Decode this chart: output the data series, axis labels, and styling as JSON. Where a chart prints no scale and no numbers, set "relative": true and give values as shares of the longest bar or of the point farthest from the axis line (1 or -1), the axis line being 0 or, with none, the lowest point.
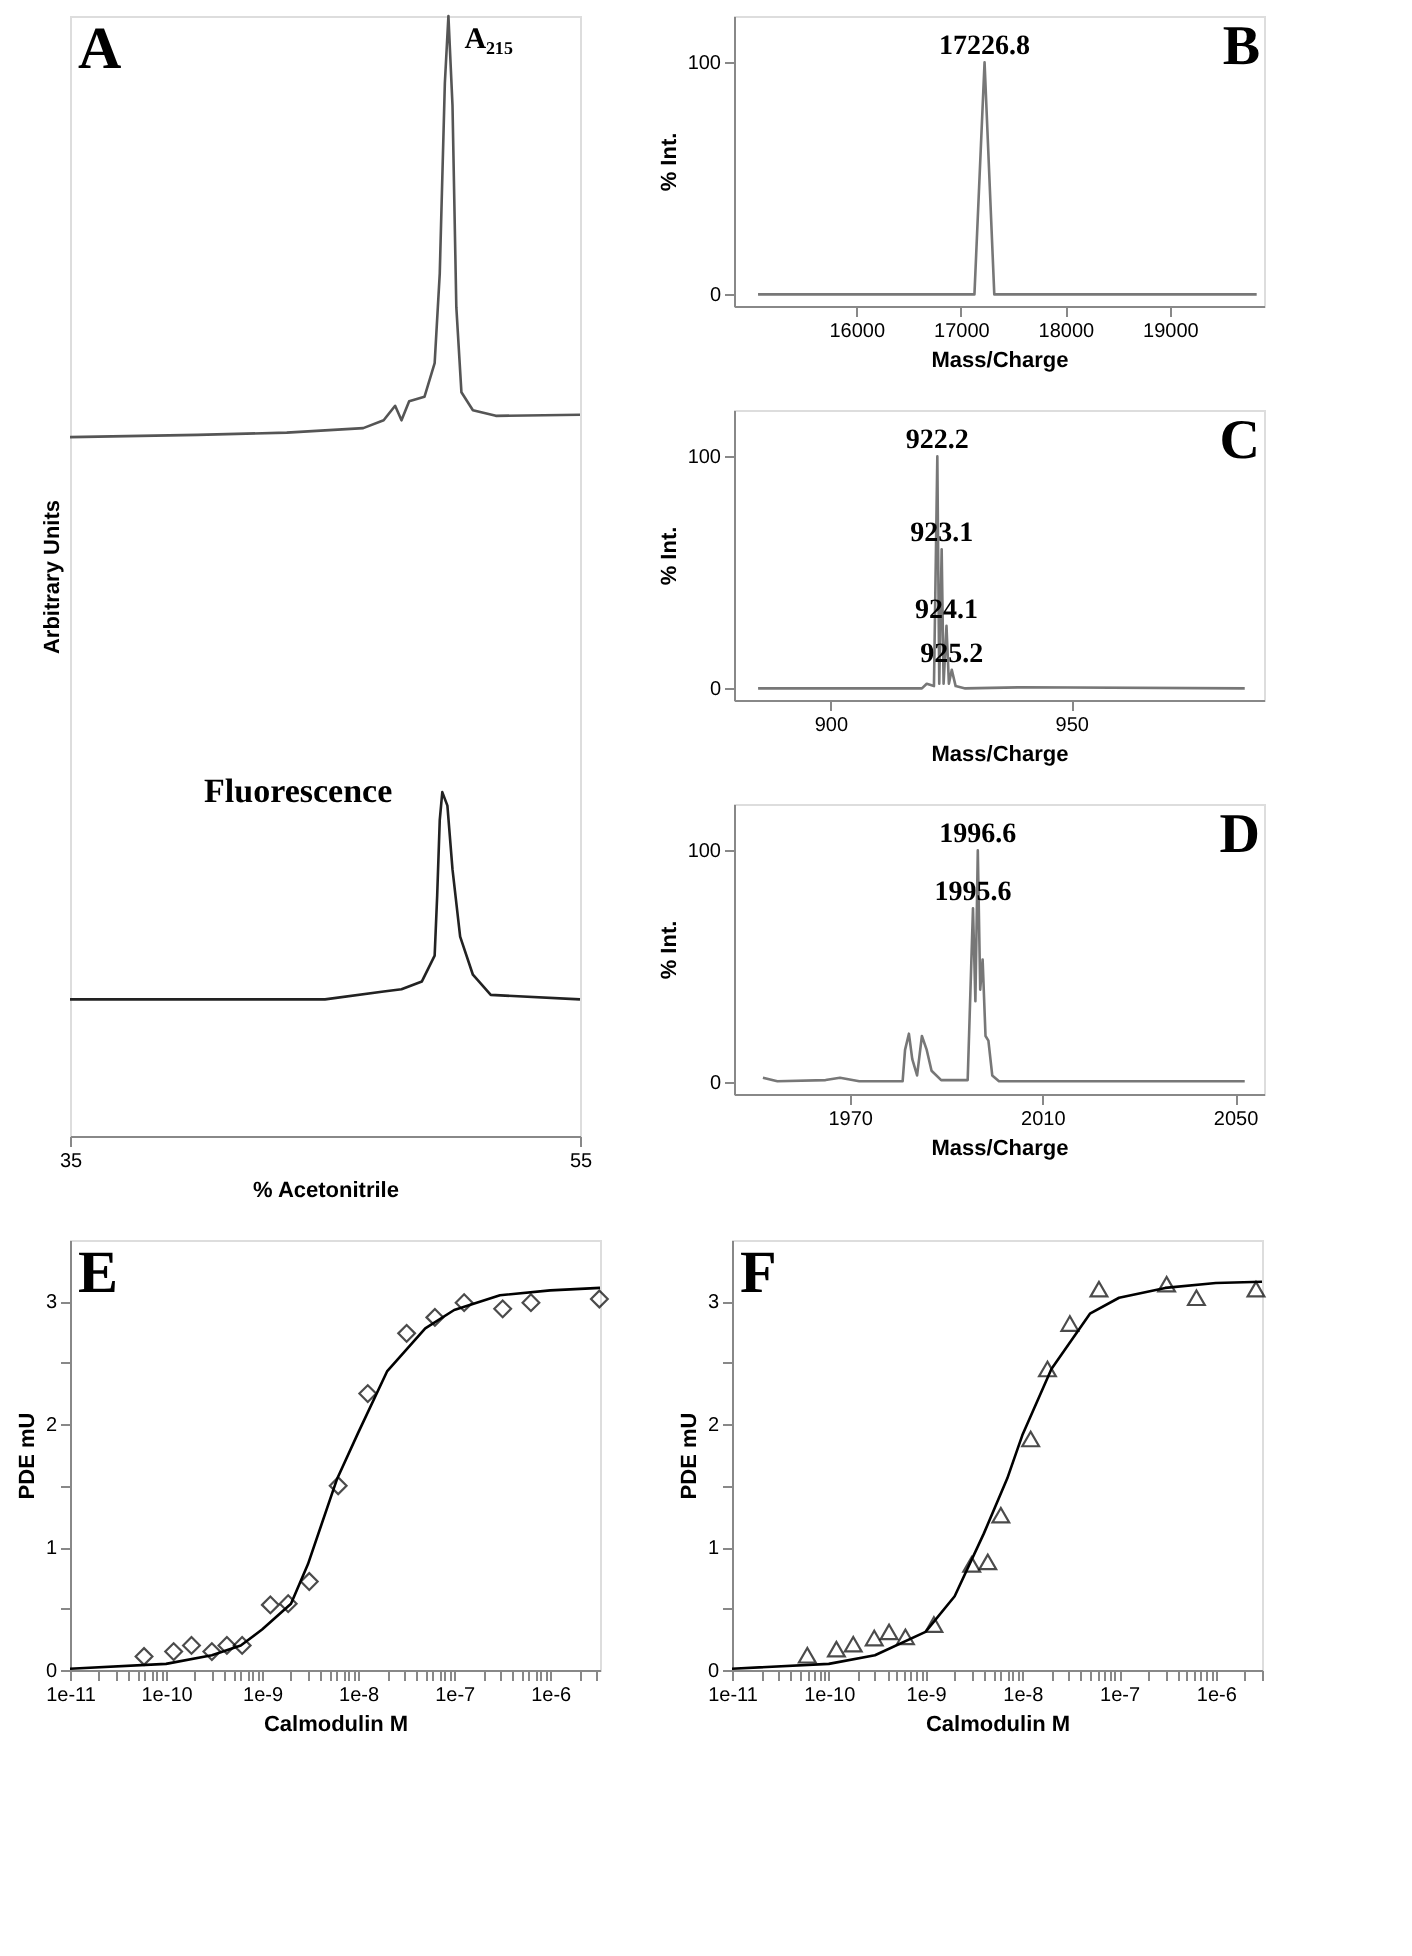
{
  "chart_data": [
    {
      "type": "line",
      "title": "A",
      "relative": true,
      "xlabel": "% Acetonitrile",
      "ylabel": "Arbitrary Units",
      "xlim": [
        35,
        55
      ],
      "xticks": [
        35,
        55
      ],
      "tick_labels": "x",
      "series": [
        {
          "name": "A₂₁₅",
          "color": "#555555",
          "x": [
            35,
            40,
            43.5,
            46.5,
            47.3,
            47.75,
            48.0,
            48.3,
            48.9,
            49.3,
            49.5,
            49.7,
            49.84,
            50.0,
            50.15,
            50.35,
            50.8,
            51.7,
            55
          ],
          "values": [
            0.624,
            0.626,
            0.628,
            0.632,
            0.639,
            0.652,
            0.639,
            0.656,
            0.66,
            0.69,
            0.77,
            0.94,
            1.0,
            0.92,
            0.74,
            0.664,
            0.648,
            0.643,
            0.644
          ]
        },
        {
          "name": "Fluorescence",
          "color": "#222222",
          "x": [
            35,
            45,
            47.3,
            48.0,
            48.8,
            49.3,
            49.4,
            49.5,
            49.6,
            49.8,
            50.0,
            50.3,
            50.8,
            51.5,
            55
          ],
          "values": [
            0.122,
            0.122,
            0.129,
            0.131,
            0.138,
            0.161,
            0.215,
            0.282,
            0.307,
            0.295,
            0.238,
            0.178,
            0.144,
            0.126,
            0.122
          ]
        }
      ]
    },
    {
      "type": "line",
      "title": "B",
      "xlabel": "Mass/Charge",
      "ylabel": "% Int.",
      "xlim": [
        14830,
        19900
      ],
      "xticks": [
        16000,
        17000,
        18000,
        19000
      ],
      "ylim": [
        -5,
        120
      ],
      "yticks": [
        0,
        100
      ],
      "series": [
        {
          "color": "#777777",
          "x": [
            15060,
            17130,
            17226.8,
            17320,
            19830
          ],
          "values": [
            0,
            0,
            100,
            0,
            0
          ]
        }
      ],
      "annotations": [
        {
          "text": "17226.8",
          "x": 17226.8,
          "y": 100
        }
      ]
    },
    {
      "type": "line",
      "title": "C",
      "xlabel": "Mass/Charge",
      "ylabel": "% Int.",
      "xlim": [
        880,
        990
      ],
      "xticks": [
        900,
        950
      ],
      "ylim": [
        -5,
        120
      ],
      "yticks": [
        0,
        100
      ],
      "series": [
        {
          "color": "#777777",
          "x": [
            885,
            919,
            920,
            921.5,
            922.2,
            922.6,
            923.1,
            923.5,
            924.1,
            924.6,
            925.2,
            926,
            928,
            940,
            986
          ],
          "values": [
            0,
            0,
            2,
            1,
            100,
            2,
            60,
            2,
            27,
            2,
            8,
            1,
            0,
            0.5,
            0
          ]
        }
      ],
      "annotations": [
        {
          "text": "922.2",
          "x": 922.2,
          "y": 100
        },
        {
          "text": "923.1",
          "x": 923.1,
          "y": 60
        },
        {
          "text": "924.1",
          "x": 924.1,
          "y": 27
        },
        {
          "text": "925.2",
          "x": 925.2,
          "y": 8
        }
      ]
    },
    {
      "type": "line",
      "title": "D",
      "xlabel": "Mass/Charge",
      "ylabel": "% Int.",
      "xlim": [
        1946,
        2056
      ],
      "xticks": [
        1970,
        2010,
        2050
      ],
      "ylim": [
        -5,
        120
      ],
      "yticks": [
        0,
        100
      ],
      "series": [
        {
          "color": "#777777",
          "x": [
            1952,
            1955,
            1965,
            1968,
            1972,
            1981,
            1981.5,
            1982.3,
            1983,
            1984,
            1985,
            1986,
            1987,
            1989,
            1994.5,
            1995.6,
            1996.1,
            1996.6,
            1997.1,
            1997.6,
            1998.2,
            1998.8,
            1999.6,
            2001,
            2052
          ],
          "values": [
            2,
            0.5,
            1,
            2,
            0.5,
            0.5,
            14,
            21,
            10,
            3,
            20,
            14,
            5,
            1,
            1,
            75,
            35,
            100,
            40,
            53,
            20,
            18,
            3,
            0.5,
            0.5
          ]
        }
      ],
      "annotations": [
        {
          "text": "1996.6",
          "x": 1996.6,
          "y": 100
        },
        {
          "text": "1995.6",
          "x": 1995.6,
          "y": 75
        }
      ]
    },
    {
      "type": "scatter",
      "title": "E",
      "xlabel": "Calmodulin M",
      "ylabel": "PDE mU",
      "log": "x",
      "xlim": [
        1e-11,
        3.3e-06
      ],
      "ylim": [
        0,
        3.5
      ],
      "xticks": [
        {
          "value": 1e-11,
          "label": "1e-11"
        },
        {
          "value": 2e-11,
          "label": null
        },
        {
          "value": 3e-11,
          "label": null
        },
        {
          "value": 4e-11,
          "label": null
        },
        {
          "value": 5e-11,
          "label": null
        },
        {
          "value": 6e-11,
          "label": null
        },
        {
          "value": 7e-11,
          "label": null
        },
        {
          "value": 8e-11,
          "label": null
        },
        {
          "value": 9e-11,
          "label": null
        },
        {
          "value": 1e-10,
          "label": "1e-10"
        },
        {
          "value": 2e-10,
          "label": null
        },
        {
          "value": 3e-10,
          "label": null
        },
        {
          "value": 4e-10,
          "label": null
        },
        {
          "value": 5e-10,
          "label": null
        },
        {
          "value": 6e-10,
          "label": null
        },
        {
          "value": 7e-10,
          "label": null
        },
        {
          "value": 8e-10,
          "label": null
        },
        {
          "value": 9e-10,
          "label": null
        },
        {
          "value": 1e-09,
          "label": "1e-9"
        },
        {
          "value": 2e-09,
          "label": null
        },
        {
          "value": 3e-09,
          "label": null
        },
        {
          "value": 4e-09,
          "label": null
        },
        {
          "value": 5e-09,
          "label": null
        },
        {
          "value": 6e-09,
          "label": null
        },
        {
          "value": 7e-09,
          "label": null
        },
        {
          "value": 8e-09,
          "label": null
        },
        {
          "value": 9e-09,
          "label": null
        },
        {
          "value": 1e-08,
          "label": "1e-8"
        },
        {
          "value": 2e-08,
          "label": null
        },
        {
          "value": 3e-08,
          "label": null
        },
        {
          "value": 4e-08,
          "label": null
        },
        {
          "value": 5e-08,
          "label": null
        },
        {
          "value": 6e-08,
          "label": null
        },
        {
          "value": 7e-08,
          "label": null
        },
        {
          "value": 8e-08,
          "label": null
        },
        {
          "value": 9e-08,
          "label": null
        },
        {
          "value": 1e-07,
          "label": "1e-7"
        },
        {
          "value": 2e-07,
          "label": null
        },
        {
          "value": 3e-07,
          "label": null
        },
        {
          "value": 4e-07,
          "label": null
        },
        {
          "value": 5e-07,
          "label": null
        },
        {
          "value": 6e-07,
          "label": null
        },
        {
          "value": 7e-07,
          "label": null
        },
        {
          "value": 8e-07,
          "label": null
        },
        {
          "value": 9e-07,
          "label": null
        },
        {
          "value": 1e-06,
          "label": "1e-6"
        },
        {
          "value": 2e-06,
          "label": null
        },
        {
          "value": 3e-06,
          "label": null
        }
      ],
      "yticks": [
        0,
        {
          "value": 0.5,
          "label": null
        },
        1,
        {
          "value": 1.5,
          "label": null
        },
        2,
        {
          "value": 2.5,
          "label": null
        },
        3
      ],
      "series": [
        {
          "type": "scatter",
          "marker": "diamond",
          "color": "#000000",
          "x": [
            5.9e-11,
            1.2e-10,
            1.84e-10,
            3e-10,
            4.3e-10,
            6.2e-10,
            1.22e-09,
            1.87e-09,
            3.1e-09,
            6.2e-09,
            1.26e-08,
            3.2e-08,
            6.3e-08,
            1.27e-07,
            3.2e-07,
            6.3e-07,
            3.25e-06
          ],
          "values": [
            0.11,
            0.15,
            0.2,
            0.15,
            0.2,
            0.2,
            0.53,
            0.54,
            0.72,
            1.5,
            2.25,
            2.74,
            2.87,
            2.99,
            2.94,
            2.99,
            3.02
          ]
        },
        {
          "type": "line",
          "marker": "none",
          "color": "#000000",
          "x": [
            1e-11,
            1e-10,
            3e-10,
            6e-10,
            1e-09,
            2e-09,
            3e-09,
            6e-09,
            1e-08,
            2e-08,
            5e-08,
            1e-07,
            3e-07,
            1e-06,
            3.3e-06
          ],
          "values": [
            0.01,
            0.05,
            0.12,
            0.2,
            0.33,
            0.54,
            0.86,
            1.55,
            1.93,
            2.43,
            2.78,
            2.93,
            3.05,
            3.09,
            3.11
          ]
        }
      ]
    },
    {
      "type": "scatter",
      "title": "F",
      "xlabel": "Calmodulin M",
      "ylabel": "PDE mU",
      "log": "x",
      "xlim": [
        1e-11,
        3e-06
      ],
      "ylim": [
        0,
        3.5
      ],
      "xticks": [
        {
          "value": 1e-11,
          "label": "1e-11"
        },
        {
          "value": 2e-11,
          "label": null
        },
        {
          "value": 3e-11,
          "label": null
        },
        {
          "value": 4e-11,
          "label": null
        },
        {
          "value": 5e-11,
          "label": null
        },
        {
          "value": 6e-11,
          "label": null
        },
        {
          "value": 7e-11,
          "label": null
        },
        {
          "value": 8e-11,
          "label": null
        },
        {
          "value": 9e-11,
          "label": null
        },
        {
          "value": 1e-10,
          "label": "1e-10"
        },
        {
          "value": 2e-10,
          "label": null
        },
        {
          "value": 3e-10,
          "label": null
        },
        {
          "value": 4e-10,
          "label": null
        },
        {
          "value": 5e-10,
          "label": null
        },
        {
          "value": 6e-10,
          "label": null
        },
        {
          "value": 7e-10,
          "label": null
        },
        {
          "value": 8e-10,
          "label": null
        },
        {
          "value": 9e-10,
          "label": null
        },
        {
          "value": 1e-09,
          "label": "1e-9"
        },
        {
          "value": 2e-09,
          "label": null
        },
        {
          "value": 3e-09,
          "label": null
        },
        {
          "value": 4e-09,
          "label": null
        },
        {
          "value": 5e-09,
          "label": null
        },
        {
          "value": 6e-09,
          "label": null
        },
        {
          "value": 7e-09,
          "label": null
        },
        {
          "value": 8e-09,
          "label": null
        },
        {
          "value": 9e-09,
          "label": null
        },
        {
          "value": 1e-08,
          "label": "1e-8"
        },
        {
          "value": 2e-08,
          "label": null
        },
        {
          "value": 3e-08,
          "label": null
        },
        {
          "value": 4e-08,
          "label": null
        },
        {
          "value": 5e-08,
          "label": null
        },
        {
          "value": 6e-08,
          "label": null
        },
        {
          "value": 7e-08,
          "label": null
        },
        {
          "value": 8e-08,
          "label": null
        },
        {
          "value": 9e-08,
          "label": null
        },
        {
          "value": 1e-07,
          "label": "1e-7"
        },
        {
          "value": 2e-07,
          "label": null
        },
        {
          "value": 3e-07,
          "label": null
        },
        {
          "value": 4e-07,
          "label": null
        },
        {
          "value": 5e-07,
          "label": null
        },
        {
          "value": 6e-07,
          "label": null
        },
        {
          "value": 7e-07,
          "label": null
        },
        {
          "value": 8e-07,
          "label": null
        },
        {
          "value": 9e-07,
          "label": null
        },
        {
          "value": 1e-06,
          "label": "1e-6"
        },
        {
          "value": 2e-06,
          "label": null
        },
        {
          "value": 3e-06,
          "label": null
        }
      ],
      "yticks": [
        0,
        {
          "value": 0.5,
          "label": null
        },
        1,
        {
          "value": 1.5,
          "label": null
        },
        2,
        {
          "value": 2.5,
          "label": null
        },
        3
      ],
      "series": [
        {
          "type": "scatter",
          "marker": "triangle",
          "color": "#000000",
          "x": [
            6e-11,
            1.2e-10,
            1.79e-10,
            2.95e-10,
            4.2e-10,
            6.2e-10,
            1.22e-09,
            3e-09,
            4.4e-09,
            6e-09,
            1.22e-08,
            1.82e-08,
            3.1e-08,
            6.2e-08,
            3.1e-07,
            6.3e-07,
            2.6e-06
          ],
          "values": [
            0.12,
            0.17,
            0.21,
            0.26,
            0.31,
            0.27,
            0.37,
            0.86,
            0.88,
            1.26,
            1.88,
            2.45,
            2.82,
            3.1,
            3.14,
            3.03,
            3.1
          ]
        },
        {
          "type": "line",
          "marker": "none",
          "color": "#000000",
          "x": [
            1e-11,
            1e-10,
            3e-10,
            1e-09,
            2e-09,
            4e-09,
            7e-09,
            1e-08,
            2e-08,
            5e-08,
            1e-07,
            3e-07,
            1e-06,
            3e-06
          ],
          "values": [
            0.01,
            0.05,
            0.12,
            0.31,
            0.6,
            1.11,
            1.56,
            1.91,
            2.45,
            2.9,
            3.03,
            3.11,
            3.15,
            3.16
          ]
        }
      ]
    }
  ]
}
